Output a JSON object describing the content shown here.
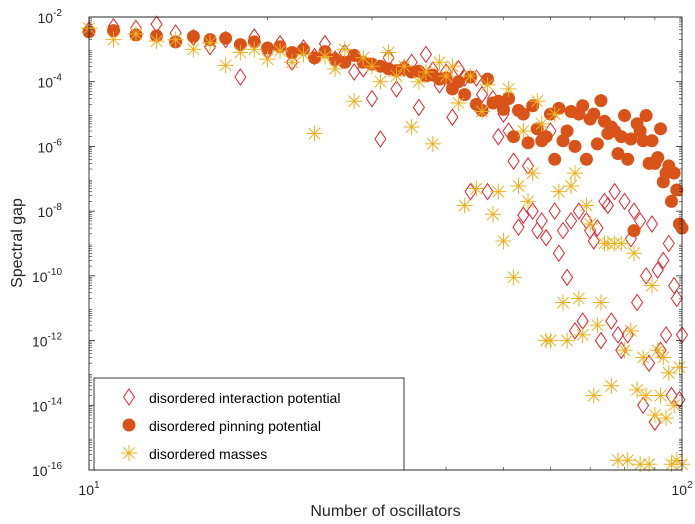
{
  "chart_data": {
    "type": "scatter",
    "x_scale": "log",
    "y_scale": "log",
    "xlim": [
      10,
      100
    ],
    "ylim": [
      1e-16,
      0.01
    ],
    "xlabel": "Number of oscillators",
    "ylabel": "Spectral gap",
    "x_ticks": [
      10,
      100
    ],
    "y_ticks": [
      1e-16,
      1e-14,
      1e-12,
      1e-10,
      1e-08,
      1e-06,
      0.0001,
      0.01
    ],
    "x_tick_labels": [
      {
        "base": "10",
        "exp": "1"
      },
      {
        "base": "10",
        "exp": "2"
      }
    ],
    "y_tick_labels": [
      {
        "base": "10",
        "exp": "-16"
      },
      {
        "base": "10",
        "exp": "-14"
      },
      {
        "base": "10",
        "exp": "-12"
      },
      {
        "base": "10",
        "exp": "-10"
      },
      {
        "base": "10",
        "exp": "-8"
      },
      {
        "base": "10",
        "exp": "-6"
      },
      {
        "base": "10",
        "exp": "-4"
      },
      {
        "base": "10",
        "exp": "-2"
      }
    ],
    "grid": false,
    "legend_position": "bottom-left",
    "series": [
      {
        "name": "disordered interaction potential",
        "marker": "diamond",
        "color": "#e3232b",
        "points": [
          [
            10,
            0.004
          ],
          [
            11,
            0.005
          ],
          [
            12,
            0.0045
          ],
          [
            13,
            0.006
          ],
          [
            14,
            0.0032
          ],
          [
            15,
            0.0023
          ],
          [
            16,
            0.0012
          ],
          [
            17,
            0.002
          ],
          [
            18,
            0.00014
          ],
          [
            19,
            0.0024
          ],
          [
            20,
            0.0009
          ],
          [
            21,
            0.0015
          ],
          [
            22,
            0.0004
          ],
          [
            23,
            0.0011
          ],
          [
            24,
            0.0006
          ],
          [
            25,
            0.0015
          ],
          [
            26,
            0.0005
          ],
          [
            27,
            0.0008
          ],
          [
            28,
            0.0002
          ],
          [
            29,
            0.00025
          ],
          [
            30,
            3e-05
          ],
          [
            31,
            1.7e-06
          ],
          [
            32,
            0.00055
          ],
          [
            33,
            6e-05
          ],
          [
            34,
            0.00026
          ],
          [
            35,
            0.0004
          ],
          [
            36,
            1.6e-05
          ],
          [
            37,
            0.0007
          ],
          [
            38,
            0.00023
          ],
          [
            39,
            8e-05
          ],
          [
            40,
            0.0002
          ],
          [
            41,
            8e-06
          ],
          [
            42,
            0.00025
          ],
          [
            43,
            0.00013
          ],
          [
            44,
            4e-08
          ],
          [
            45,
            0.00013
          ],
          [
            46,
            4e-05
          ],
          [
            47,
            4e-08
          ],
          [
            48,
            3e-05
          ],
          [
            49,
            2e-06
          ],
          [
            50,
            1e-05
          ],
          [
            51,
            3e-06
          ],
          [
            52,
            3.5e-07
          ],
          [
            53,
            3.2e-09
          ],
          [
            54,
            7.5e-09
          ],
          [
            55,
            2.5e-07
          ],
          [
            56,
            1e-08
          ],
          [
            57,
            2.5e-09
          ],
          [
            58,
            5e-09
          ],
          [
            59,
            1.5e-09
          ],
          [
            60,
            3e-06
          ],
          [
            61,
            1e-08
          ],
          [
            62,
            5e-10
          ],
          [
            63,
            2.5e-09
          ],
          [
            64,
            9e-11
          ],
          [
            65,
            5e-09
          ],
          [
            66,
            2e-12
          ],
          [
            67,
            1e-08
          ],
          [
            68,
            4e-12
          ],
          [
            69,
            5e-09
          ],
          [
            70,
            2.5e-09
          ],
          [
            71,
            1.2e-09
          ],
          [
            72,
            3e-09
          ],
          [
            73,
            1e-12
          ],
          [
            74,
            2e-08
          ],
          [
            75,
            1.5e-08
          ],
          [
            76,
            4e-12
          ],
          [
            77,
            4e-08
          ],
          [
            78,
            1.5e-12
          ],
          [
            79,
            5e-13
          ],
          [
            80,
            2e-08
          ],
          [
            81,
            1.5e-12
          ],
          [
            82,
            1.4e-09
          ],
          [
            83,
            1e-08
          ],
          [
            84,
            1.5e-11
          ],
          [
            85,
            5e-09
          ],
          [
            86,
            1e-14
          ],
          [
            87,
            1e-10
          ],
          [
            88,
            2e-13
          ],
          [
            89,
            4e-09
          ],
          [
            90,
            3e-15
          ],
          [
            91,
            1.5e-10
          ],
          [
            92,
            5e-13
          ],
          [
            93,
            3e-10
          ],
          [
            94,
            1.5e-12
          ],
          [
            95,
            1e-09
          ],
          [
            96,
            2e-14
          ],
          [
            97,
            5e-11
          ],
          [
            98,
            2e-11
          ],
          [
            99,
            1.5e-14
          ],
          [
            100,
            1.5e-12
          ]
        ]
      },
      {
        "name": "disordered pinning potential",
        "marker": "circle",
        "color": "#d95319",
        "points": [
          [
            10,
            0.0035
          ],
          [
            11,
            0.0038
          ],
          [
            12,
            0.0028
          ],
          [
            13,
            0.0026
          ],
          [
            14,
            0.0017
          ],
          [
            15,
            0.0025
          ],
          [
            16,
            0.002
          ],
          [
            17,
            0.0022
          ],
          [
            18,
            0.0014
          ],
          [
            19,
            0.0017
          ],
          [
            20,
            0.0011
          ],
          [
            21,
            0.0012
          ],
          [
            22,
            0.0008
          ],
          [
            23,
            0.001
          ],
          [
            24,
            0.00055
          ],
          [
            25,
            0.00085
          ],
          [
            26,
            0.0005
          ],
          [
            27,
            0.0004
          ],
          [
            28,
            0.00065
          ],
          [
            29,
            0.0004
          ],
          [
            30,
            0.00035
          ],
          [
            31,
            0.0003
          ],
          [
            32,
            0.00025
          ],
          [
            33,
            0.00022
          ],
          [
            34,
            0.00026
          ],
          [
            35,
            0.0002
          ],
          [
            36,
            0.00021
          ],
          [
            37,
            0.00015
          ],
          [
            38,
            0.00016
          ],
          [
            39,
            0.00012
          ],
          [
            40,
            0.00013
          ],
          [
            41,
            6e-05
          ],
          [
            42,
            0.0001
          ],
          [
            43,
            4e-05
          ],
          [
            44,
            0.00014
          ],
          [
            45,
            2e-05
          ],
          [
            46,
            1.3e-05
          ],
          [
            47,
            0.00012
          ],
          [
            48,
            2.2e-05
          ],
          [
            49,
            2.5e-05
          ],
          [
            50,
            1.4e-05
          ],
          [
            51,
            3e-05
          ],
          [
            52,
            2e-06
          ],
          [
            53,
            1.3e-05
          ],
          [
            54,
            1e-05
          ],
          [
            55,
            1.3e-06
          ],
          [
            56,
            1.8e-05
          ],
          [
            57,
            3.5e-06
          ],
          [
            58,
            1.5e-06
          ],
          [
            59,
            2e-06
          ],
          [
            60,
            1e-05
          ],
          [
            61,
            4e-07
          ],
          [
            62,
            1.5e-05
          ],
          [
            63,
            1.5e-06
          ],
          [
            64,
            3e-06
          ],
          [
            65,
            1.2e-05
          ],
          [
            66,
            1e-06
          ],
          [
            67,
            1e-05
          ],
          [
            68,
            1.8e-05
          ],
          [
            69,
            4e-07
          ],
          [
            70,
            7e-06
          ],
          [
            71,
            1e-05
          ],
          [
            72,
            1.2e-06
          ],
          [
            73,
            2.6e-05
          ],
          [
            74,
            6e-06
          ],
          [
            75,
            2.5e-06
          ],
          [
            76,
            4e-06
          ],
          [
            77,
            3e-06
          ],
          [
            78,
            6e-07
          ],
          [
            79,
            2e-06
          ],
          [
            80,
            9e-06
          ],
          [
            81,
            4e-07
          ],
          [
            82,
            1.7e-06
          ],
          [
            83,
            2.5e-09
          ],
          [
            84,
            5e-06
          ],
          [
            85,
            3e-06
          ],
          [
            86,
            1.5e-06
          ],
          [
            87,
            9e-06
          ],
          [
            88,
            3e-07
          ],
          [
            89,
            1.5e-06
          ],
          [
            90,
            3e-07
          ],
          [
            91,
            4.5e-07
          ],
          [
            92,
            3.5e-06
          ],
          [
            93,
            8e-08
          ],
          [
            94,
            1.5e-07
          ],
          [
            95,
            2.5e-07
          ],
          [
            96,
            2e-08
          ],
          [
            97,
            1.5e-07
          ],
          [
            98,
            4.5e-08
          ],
          [
            99,
            4e-09
          ],
          [
            100,
            3e-09
          ]
        ]
      },
      {
        "name": "disordered masses",
        "marker": "asterisk",
        "color": "#edb120",
        "points": [
          [
            10,
            0.0045
          ],
          [
            11,
            0.002
          ],
          [
            12,
            0.003
          ],
          [
            13,
            0.0018
          ],
          [
            14,
            0.002
          ],
          [
            15,
            0.001
          ],
          [
            16,
            0.0016
          ],
          [
            17,
            0.00032
          ],
          [
            18,
            0.0008
          ],
          [
            19,
            0.001
          ],
          [
            20,
            0.0005
          ],
          [
            21,
            0.0009
          ],
          [
            22,
            0.0004
          ],
          [
            23,
            0.0007
          ],
          [
            24,
            2.5e-06
          ],
          [
            25,
            0.0006
          ],
          [
            26,
            0.00025
          ],
          [
            27,
            0.001
          ],
          [
            28,
            2.5e-05
          ],
          [
            29,
            0.00055
          ],
          [
            30,
            0.0003
          ],
          [
            31,
            0.0001
          ],
          [
            32,
            0.0008
          ],
          [
            33,
            0.00015
          ],
          [
            34,
            0.0003
          ],
          [
            35,
            4e-06
          ],
          [
            36,
            0.0001
          ],
          [
            37,
            0.0002
          ],
          [
            38,
            1.2e-06
          ],
          [
            39,
            0.0004
          ],
          [
            40,
            0.00015
          ],
          [
            41,
            0.0003
          ],
          [
            42,
            2.2e-05
          ],
          [
            43,
            1.5e-08
          ],
          [
            44,
            0.00015
          ],
          [
            45,
            5e-08
          ],
          [
            46,
            1.2e-05
          ],
          [
            47,
            8e-05
          ],
          [
            48,
            8e-09
          ],
          [
            49,
            4e-08
          ],
          [
            50,
            1.2e-09
          ],
          [
            51,
            6e-05
          ],
          [
            52,
            9e-11
          ],
          [
            53,
            6e-08
          ],
          [
            54,
            3e-06
          ],
          [
            55,
            2e-08
          ],
          [
            56,
            1.5e-07
          ],
          [
            57,
            2.5e-05
          ],
          [
            58,
            5e-06
          ],
          [
            59,
            1e-12
          ],
          [
            60,
            1e-12
          ],
          [
            61,
            1e-05
          ],
          [
            62,
            4e-08
          ],
          [
            63,
            1.5e-11
          ],
          [
            64,
            1e-12
          ],
          [
            65,
            6e-08
          ],
          [
            66,
            1.5e-07
          ],
          [
            67,
            2e-11
          ],
          [
            68,
            1.5e-12
          ],
          [
            69,
            1.5e-08
          ],
          [
            70,
            4e-09
          ],
          [
            71,
            2e-14
          ],
          [
            72,
            3e-12
          ],
          [
            73,
            1.5e-11
          ],
          [
            74,
            1e-09
          ],
          [
            75,
            1e-09
          ],
          [
            76,
            4e-14
          ],
          [
            77,
            1e-09
          ],
          [
            78,
            2e-16
          ],
          [
            79,
            1e-09
          ],
          [
            80,
            5e-13
          ],
          [
            81,
            2e-16
          ],
          [
            82,
            2e-12
          ],
          [
            83,
            5e-10
          ],
          [
            84,
            3e-14
          ],
          [
            85,
            1.5e-16
          ],
          [
            86,
            3e-13
          ],
          [
            87,
            2e-14
          ],
          [
            88,
            1.5e-16
          ],
          [
            89,
            5e-11
          ],
          [
            90,
            5e-15
          ],
          [
            91,
            5e-13
          ],
          [
            92,
            2e-14
          ],
          [
            93,
            3e-13
          ],
          [
            94,
            4e-15
          ],
          [
            95,
            1e-13
          ],
          [
            96,
            1.5e-16
          ],
          [
            97,
            1e-14
          ],
          [
            98,
            2e-16
          ],
          [
            99,
            1.5e-13
          ],
          [
            100,
            1.5e-16
          ]
        ]
      }
    ]
  }
}
